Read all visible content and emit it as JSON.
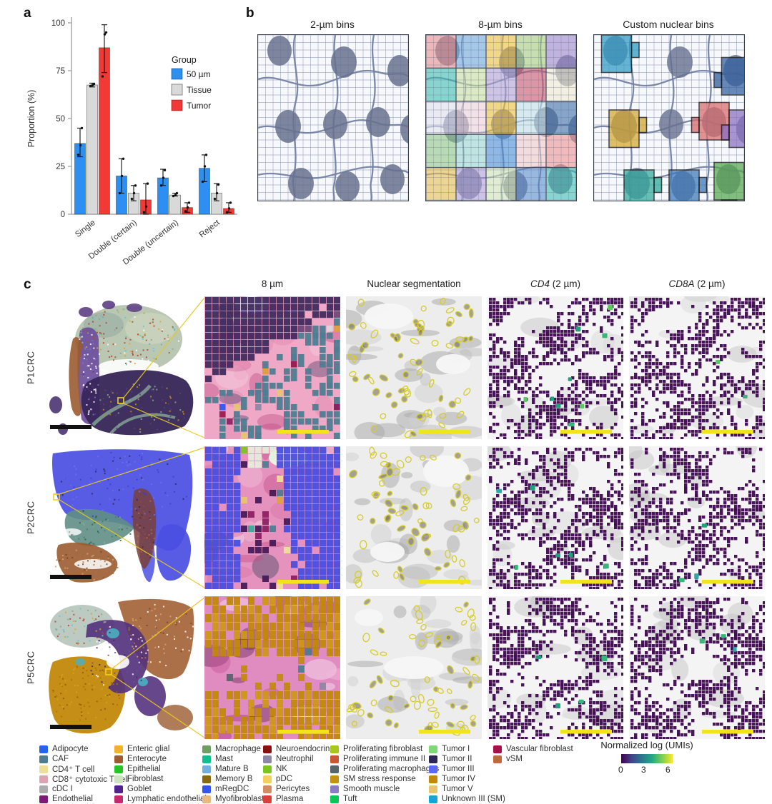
{
  "panels": {
    "a": "a",
    "b": "b",
    "c": "c"
  },
  "chart_data": {
    "type": "bar",
    "title": "",
    "ylabel": "Proportion (%)",
    "ylim": [
      0,
      100
    ],
    "yticks": [
      0,
      25,
      50,
      75,
      100
    ],
    "categories": [
      "Single",
      "Double (certain)",
      "Double (uncertain)",
      "Reject"
    ],
    "legend_title": "Group",
    "legend_position": "upper right",
    "grid": false,
    "series": [
      {
        "name": "50 µm",
        "color": "#2E8FF2",
        "values": [
          37,
          20,
          19,
          24
        ],
        "err_lo": [
          30,
          11,
          15,
          17
        ],
        "err_hi": [
          45,
          29,
          23.5,
          31
        ],
        "points": [
          [
            31,
            36,
            45
          ],
          [
            11,
            20,
            29
          ],
          [
            15,
            19,
            23
          ],
          [
            17,
            25,
            31
          ]
        ]
      },
      {
        "name": "Tissue",
        "color": "#D9D9D9",
        "values": [
          67.5,
          11,
          10,
          11
        ],
        "err_lo": [
          66.5,
          7,
          9.5,
          7
        ],
        "err_hi": [
          68.5,
          15,
          11,
          16
        ],
        "points": [
          [
            67,
            67.5,
            68
          ],
          [
            8,
            11,
            15
          ],
          [
            9.5,
            10,
            11
          ],
          [
            8,
            11,
            15.5
          ]
        ]
      },
      {
        "name": "Tumor",
        "color": "#F23933",
        "values": [
          87,
          7.5,
          3.5,
          3
        ],
        "err_lo": [
          74,
          0,
          1,
          1
        ],
        "err_hi": [
          99,
          16,
          6,
          6
        ],
        "points": [
          [
            72,
            94,
            95
          ],
          [
            1,
            4,
            16
          ],
          [
            1.5,
            3.5,
            6
          ],
          [
            1,
            3,
            6
          ]
        ]
      }
    ]
  },
  "panel_b": {
    "titles": [
      "2-µm bins",
      "8-µm bins",
      "Custom nuclear bins"
    ],
    "bin_colors": [
      "#E58E8E",
      "#6FA8DC",
      "#F0C23C",
      "#A8CF7E",
      "#9C86C9",
      "#3FBFB2",
      "#C9E0A0",
      "#B3A3D8",
      "#C9586E",
      "#F2EAD0",
      "#E2E2EE",
      "#F0D4DA",
      "#F0C23C",
      "#C2E2E8",
      "#3E6EA8",
      "#8FC989",
      "#9AD8D0",
      "#4A8FD8",
      "#F2CACA",
      "#EE9494",
      "#E8BE4E",
      "#B3A0D8",
      "#D2E6B6",
      "#5A8ECE",
      "#3FBFB2"
    ],
    "custom_bin_colors": [
      "#2E9BC4",
      "#2F5E9E",
      "#D4A72C",
      "#D96A6A",
      "#8A6FC0",
      "#2FA89A",
      "#3C78B8",
      "#56A84F"
    ]
  },
  "panel_c": {
    "columns": [
      {
        "italic": "",
        "text": "8 µm"
      },
      {
        "italic": "",
        "text": "Nuclear segmentation"
      },
      {
        "italic": "CD4",
        "text": " (2 µm)"
      },
      {
        "italic": "CD8A",
        "text": " (2 µm)"
      }
    ],
    "rows": [
      {
        "label": "P1CRC"
      },
      {
        "label": "P2CRC"
      },
      {
        "label": "P5CRC"
      }
    ]
  },
  "cell_legend": {
    "columns": [
      [
        {
          "label": "Adipocyte",
          "color": "#2463F0"
        },
        {
          "label": "CAF",
          "color": "#4E7D92"
        },
        {
          "label": "CD4⁺ T cell",
          "color": "#EDE096"
        },
        {
          "label": "CD8⁺ cytotoxic T cell",
          "color": "#DCA3B2"
        },
        {
          "label": "cDC I",
          "color": "#ACACAC"
        },
        {
          "label": "Endothelial",
          "color": "#7D1B78"
        }
      ],
      [
        {
          "label": "Enteric glial",
          "color": "#F2B12B"
        },
        {
          "label": "Enterocyte",
          "color": "#9D5B31"
        },
        {
          "label": "Epithelial",
          "color": "#27C427"
        },
        {
          "label": "Fibroblast",
          "color": "#CFE2C2"
        },
        {
          "label": "Goblet",
          "color": "#502391"
        },
        {
          "label": "Lymphatic endothelial",
          "color": "#C42A6E"
        }
      ],
      [
        {
          "label": "Macrophage",
          "color": "#6F9E62"
        },
        {
          "label": "Mast",
          "color": "#10BE8E"
        },
        {
          "label": "Mature B",
          "color": "#72AFDC"
        },
        {
          "label": "Memory B",
          "color": "#8A6A10"
        },
        {
          "label": "mRegDC",
          "color": "#3355EE"
        },
        {
          "label": "Myofibroblast",
          "color": "#E9B87D"
        }
      ],
      [
        {
          "label": "Neuroendocrine",
          "color": "#8C0F0F"
        },
        {
          "label": "Neutrophil",
          "color": "#8E87A5"
        },
        {
          "label": "NK",
          "color": "#7DC420"
        },
        {
          "label": "pDC",
          "color": "#F5CF5E"
        },
        {
          "label": "Pericytes",
          "color": "#D08F63"
        },
        {
          "label": "Plasma",
          "color": "#D8403A"
        }
      ],
      [
        {
          "label": "Proliferating fibroblast",
          "color": "#A5C916"
        },
        {
          "label": "Proliferating immune II",
          "color": "#C9572F"
        },
        {
          "label": "Proliferating macrophages",
          "color": "#56666B"
        },
        {
          "label": "SM stress response",
          "color": "#C3920E"
        },
        {
          "label": "Smooth muscle",
          "color": "#8A7BC4"
        },
        {
          "label": "Tuft",
          "color": "#0FC455"
        }
      ],
      [
        {
          "label": "Tumor I",
          "color": "#7ED877"
        },
        {
          "label": "Tumor II",
          "color": "#2E2657"
        },
        {
          "label": "Tumor III",
          "color": "#5B68F2"
        },
        {
          "label": "Tumor IV",
          "color": "#C2880B"
        },
        {
          "label": "Tumor V",
          "color": "#E5C56E"
        },
        {
          "label": "Unknown III (SM)",
          "color": "#16A4D6"
        }
      ],
      [
        {
          "label": "Vascular fibroblast",
          "color": "#A81049"
        },
        {
          "label": "vSM",
          "color": "#BC6A3E"
        }
      ]
    ]
  },
  "colorbar": {
    "title": "Normalized log (UMIs)",
    "ticks": [
      "0",
      "3",
      "6"
    ],
    "gradient": [
      "#440154",
      "#414487",
      "#2A788E",
      "#22A884",
      "#7AD151",
      "#FDE725"
    ]
  }
}
